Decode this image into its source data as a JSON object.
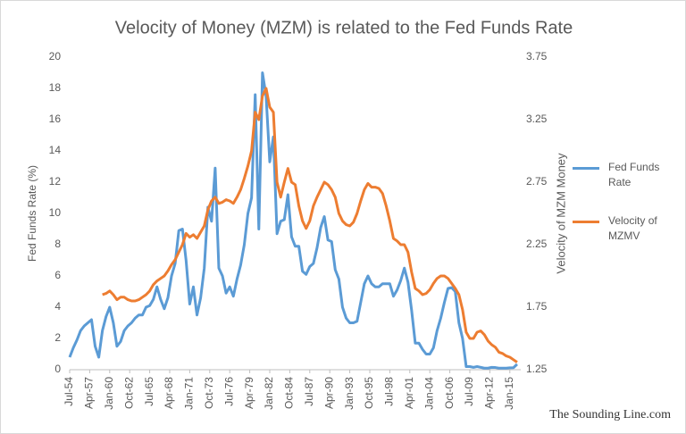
{
  "chart_data": {
    "type": "line",
    "title": "Velocity of Money (MZM) is related to the Fed Funds Rate",
    "y_label": "Fed Funds Rate (%)",
    "y2_label": "Velocity of MZM Money",
    "watermark": "The Sounding Line.com",
    "legend": "right",
    "grid": false,
    "xlim": [
      1954.5,
      2016.5
    ],
    "ylim": [
      0,
      20
    ],
    "yticks": [
      0,
      2,
      4,
      6,
      8,
      10,
      12,
      14,
      16,
      18,
      20
    ],
    "y2lim": [
      1.25,
      3.75
    ],
    "y2ticks": [
      1.25,
      1.75,
      2.25,
      2.75,
      3.25,
      3.75
    ],
    "xticks": [
      {
        "value": 1954.5,
        "label": "Jul-54"
      },
      {
        "value": 1957.25,
        "label": "Apr-57"
      },
      {
        "value": 1960,
        "label": "Jan-60"
      },
      {
        "value": 1962.75,
        "label": "Oct-62"
      },
      {
        "value": 1965.5,
        "label": "Jul-65"
      },
      {
        "value": 1968.25,
        "label": "Apr-68"
      },
      {
        "value": 1971,
        "label": "Jan-71"
      },
      {
        "value": 1973.75,
        "label": "Oct-73"
      },
      {
        "value": 1976.5,
        "label": "Jul-76"
      },
      {
        "value": 1979.25,
        "label": "Apr-79"
      },
      {
        "value": 1982,
        "label": "Jan-82"
      },
      {
        "value": 1984.75,
        "label": "Oct-84"
      },
      {
        "value": 1987.5,
        "label": "Jul-87"
      },
      {
        "value": 1990.25,
        "label": "Apr-90"
      },
      {
        "value": 1993,
        "label": "Jan-93"
      },
      {
        "value": 1995.75,
        "label": "Oct-95"
      },
      {
        "value": 1998.5,
        "label": "Jul-98"
      },
      {
        "value": 2001.25,
        "label": "Apr-01"
      },
      {
        "value": 2004,
        "label": "Jan-04"
      },
      {
        "value": 2006.75,
        "label": "Oct-06"
      },
      {
        "value": 2009.5,
        "label": "Jul-09"
      },
      {
        "value": 2012.25,
        "label": "Apr-12"
      },
      {
        "value": 2015,
        "label": "Jan-15"
      }
    ],
    "x": [
      1954.5,
      1955,
      1955.5,
      1956,
      1956.5,
      1957,
      1957.5,
      1958,
      1958.5,
      1959,
      1959.5,
      1960,
      1960.5,
      1961,
      1961.5,
      1962,
      1962.5,
      1963,
      1963.5,
      1964,
      1964.5,
      1965,
      1965.5,
      1966,
      1966.5,
      1967,
      1967.5,
      1968,
      1968.5,
      1969,
      1969.5,
      1970,
      1970.5,
      1971,
      1971.5,
      1972,
      1972.5,
      1973,
      1973.5,
      1974,
      1974.5,
      1975,
      1975.5,
      1976,
      1976.5,
      1977,
      1977.5,
      1978,
      1978.5,
      1979,
      1979.5,
      1980,
      1980.5,
      1981,
      1981.5,
      1982,
      1982.5,
      1983,
      1983.5,
      1984,
      1984.5,
      1985,
      1985.5,
      1986,
      1986.5,
      1987,
      1987.5,
      1988,
      1988.5,
      1989,
      1989.5,
      1990,
      1990.5,
      1991,
      1991.5,
      1992,
      1992.5,
      1993,
      1993.5,
      1994,
      1994.5,
      1995,
      1995.5,
      1996,
      1996.5,
      1997,
      1997.5,
      1998,
      1998.5,
      1999,
      1999.5,
      2000,
      2000.5,
      2001,
      2001.5,
      2002,
      2002.5,
      2003,
      2003.5,
      2004,
      2004.5,
      2005,
      2005.5,
      2006,
      2006.5,
      2007,
      2007.5,
      2008,
      2008.5,
      2009,
      2009.5,
      2010,
      2010.5,
      2011,
      2011.5,
      2012,
      2012.5,
      2013,
      2013.5,
      2014,
      2014.5,
      2015,
      2015.5,
      2016
    ],
    "series": [
      {
        "name": "Fed Funds Rate",
        "color": "#5b9bd5",
        "axis": "y",
        "values": [
          0.8,
          1.4,
          1.9,
          2.5,
          2.8,
          3.0,
          3.2,
          1.5,
          0.8,
          2.5,
          3.4,
          4.0,
          3.0,
          1.5,
          1.8,
          2.5,
          2.8,
          3.0,
          3.3,
          3.5,
          3.5,
          4.0,
          4.1,
          4.5,
          5.3,
          4.5,
          3.9,
          4.6,
          6.0,
          6.8,
          8.9,
          9.0,
          7.0,
          4.2,
          5.3,
          3.5,
          4.6,
          6.5,
          10.4,
          9.5,
          12.9,
          6.5,
          6.0,
          4.9,
          5.3,
          4.7,
          5.8,
          6.7,
          8.0,
          10.0,
          11.0,
          17.6,
          9.0,
          19.0,
          17.5,
          13.3,
          14.9,
          8.7,
          9.5,
          9.6,
          11.2,
          8.5,
          7.9,
          7.9,
          6.3,
          6.1,
          6.6,
          6.8,
          7.8,
          9.1,
          9.8,
          8.3,
          8.2,
          6.4,
          5.8,
          4.0,
          3.3,
          3.0,
          3.0,
          3.1,
          4.3,
          5.5,
          6.0,
          5.5,
          5.3,
          5.3,
          5.5,
          5.5,
          5.5,
          4.7,
          5.1,
          5.7,
          6.5,
          5.6,
          3.8,
          1.7,
          1.7,
          1.3,
          1.0,
          1.0,
          1.4,
          2.5,
          3.3,
          4.3,
          5.2,
          5.25,
          5.0,
          3.0,
          2.0,
          0.2,
          0.2,
          0.15,
          0.2,
          0.15,
          0.1,
          0.1,
          0.15,
          0.14,
          0.1,
          0.1,
          0.1,
          0.12,
          0.13,
          0.35
        ]
      },
      {
        "name": "Velocity of MZMV",
        "color": "#ed7d31",
        "axis": "y2",
        "values": [
          null,
          null,
          null,
          null,
          null,
          null,
          null,
          null,
          null,
          1.85,
          1.86,
          1.88,
          1.85,
          1.81,
          1.83,
          1.83,
          1.81,
          1.8,
          1.8,
          1.81,
          1.83,
          1.85,
          1.88,
          1.93,
          1.96,
          1.98,
          2.0,
          2.04,
          2.09,
          2.13,
          2.19,
          2.25,
          2.34,
          2.31,
          2.33,
          2.3,
          2.35,
          2.4,
          2.53,
          2.6,
          2.63,
          2.58,
          2.59,
          2.61,
          2.6,
          2.58,
          2.63,
          2.69,
          2.78,
          2.88,
          3.0,
          3.31,
          3.25,
          3.44,
          3.5,
          3.35,
          3.31,
          2.75,
          2.63,
          2.75,
          2.86,
          2.75,
          2.73,
          2.56,
          2.44,
          2.38,
          2.44,
          2.56,
          2.63,
          2.69,
          2.75,
          2.73,
          2.69,
          2.63,
          2.5,
          2.44,
          2.41,
          2.4,
          2.43,
          2.5,
          2.6,
          2.69,
          2.74,
          2.71,
          2.71,
          2.7,
          2.66,
          2.56,
          2.44,
          2.3,
          2.28,
          2.25,
          2.25,
          2.19,
          2.03,
          1.9,
          1.88,
          1.85,
          1.86,
          1.89,
          1.94,
          1.98,
          2.0,
          2.0,
          1.98,
          1.94,
          1.9,
          1.85,
          1.73,
          1.55,
          1.5,
          1.5,
          1.55,
          1.56,
          1.53,
          1.48,
          1.45,
          1.43,
          1.39,
          1.38,
          1.36,
          1.35,
          1.33,
          1.31
        ]
      }
    ]
  }
}
